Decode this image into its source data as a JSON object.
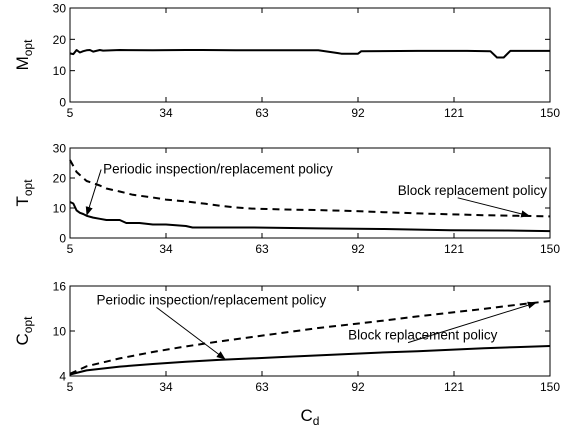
{
  "chart_data": [
    {
      "type": "line",
      "ylabel_main": "M",
      "ylabel_sub": "opt",
      "xlim": [
        5,
        150
      ],
      "ylim": [
        0,
        30
      ],
      "xticks": [
        "5",
        "34",
        "63",
        "92",
        "121",
        "150"
      ],
      "yticks": [
        "0",
        "10",
        "20",
        "30"
      ],
      "grid": false,
      "series": [
        {
          "style": "solid",
          "x": [
            5,
            6,
            7,
            8,
            9,
            10,
            11,
            12,
            14,
            15,
            20,
            30,
            40,
            45,
            55,
            64,
            80,
            86,
            87,
            92,
            93,
            110,
            125,
            132,
            134,
            136,
            138,
            150
          ],
          "y": [
            15.5,
            15.3,
            16.6,
            15.8,
            16.2,
            16.5,
            16.6,
            16.1,
            16.6,
            16.4,
            16.6,
            16.5,
            16.6,
            16.6,
            16.5,
            16.5,
            16.5,
            15.6,
            15.4,
            15.4,
            16.2,
            16.3,
            16.3,
            16.2,
            14.2,
            14.2,
            16.3,
            16.3
          ]
        }
      ]
    },
    {
      "type": "line",
      "ylabel_main": "T",
      "ylabel_sub": "opt",
      "xlim": [
        5,
        150
      ],
      "ylim": [
        0,
        30
      ],
      "xticks": [
        "5",
        "34",
        "63",
        "92",
        "121",
        "150"
      ],
      "yticks": [
        "0",
        "10",
        "20",
        "30"
      ],
      "grid": false,
      "series": [
        {
          "style": "dashed",
          "x": [
            5,
            6,
            7,
            8,
            10,
            12,
            14,
            16,
            20,
            24,
            30,
            34,
            40,
            46,
            50,
            55,
            60,
            70,
            80,
            90,
            100,
            110,
            120,
            130,
            140,
            150
          ],
          "y": [
            26,
            24,
            22,
            21,
            19,
            18.3,
            17.5,
            16.5,
            15.5,
            14.4,
            13.5,
            12.8,
            12.2,
            11.4,
            10.8,
            10.2,
            9.8,
            9.5,
            9.3,
            9.0,
            8.6,
            8.2,
            7.9,
            7.6,
            7.4,
            7.2
          ]
        },
        {
          "style": "solid",
          "x": [
            5,
            6,
            7,
            8,
            9,
            10,
            12,
            14,
            16,
            20,
            22,
            26,
            30,
            34,
            40,
            42,
            60,
            80,
            100,
            110,
            120,
            137,
            150
          ],
          "y": [
            12,
            11.5,
            9.2,
            8.4,
            8.0,
            7.4,
            6.8,
            6.4,
            6.0,
            6.0,
            5.0,
            5.0,
            4.5,
            4.5,
            4.0,
            3.5,
            3.5,
            3.2,
            3.0,
            2.8,
            2.6,
            2.5,
            2.3
          ]
        }
      ],
      "annotations": [
        {
          "text": "Periodic inspection/replacement policy",
          "x": 15,
          "y": 21.5,
          "arrow_to_x": 10,
          "arrow_to_y": 7.4
        },
        {
          "text": "Block replacement policy",
          "x": 104,
          "y": 14.4,
          "arrow_to_x": 144,
          "arrow_to_y": 7.3
        }
      ]
    },
    {
      "type": "line",
      "ylabel_main": "C",
      "ylabel_sub": "opt",
      "xlim": [
        5,
        150
      ],
      "ylim": [
        4,
        16
      ],
      "xticks": [
        "5",
        "34",
        "63",
        "92",
        "121",
        "150"
      ],
      "yticks": [
        "4",
        "10",
        "16"
      ],
      "grid": false,
      "series": [
        {
          "style": "dashed",
          "x": [
            5,
            10,
            20,
            30,
            40,
            50,
            60,
            70,
            80,
            90,
            100,
            110,
            120,
            130,
            140,
            150
          ],
          "y": [
            4.3,
            5.3,
            6.35,
            7.2,
            7.95,
            8.6,
            9.2,
            9.8,
            10.4,
            10.9,
            11.4,
            11.95,
            12.45,
            12.95,
            13.5,
            14.0
          ]
        },
        {
          "style": "solid",
          "x": [
            5,
            10,
            20,
            30,
            40,
            50,
            60,
            70,
            80,
            90,
            100,
            110,
            120,
            130,
            140,
            150
          ],
          "y": [
            4.2,
            4.75,
            5.25,
            5.6,
            5.9,
            6.15,
            6.35,
            6.55,
            6.75,
            6.95,
            7.15,
            7.3,
            7.5,
            7.7,
            7.85,
            8.0
          ]
        }
      ],
      "annotations": [
        {
          "text": "Periodic inspection/replacement policy",
          "x": 13,
          "y": 13.55,
          "arrow_to_x": 52,
          "arrow_to_y": 6.2
        },
        {
          "text": "Block replacement policy",
          "x": 89,
          "y": 8.85,
          "arrow_to_x": 146,
          "arrow_to_y": 13.8
        }
      ]
    }
  ],
  "xlabel_main": "C",
  "xlabel_sub": "d"
}
